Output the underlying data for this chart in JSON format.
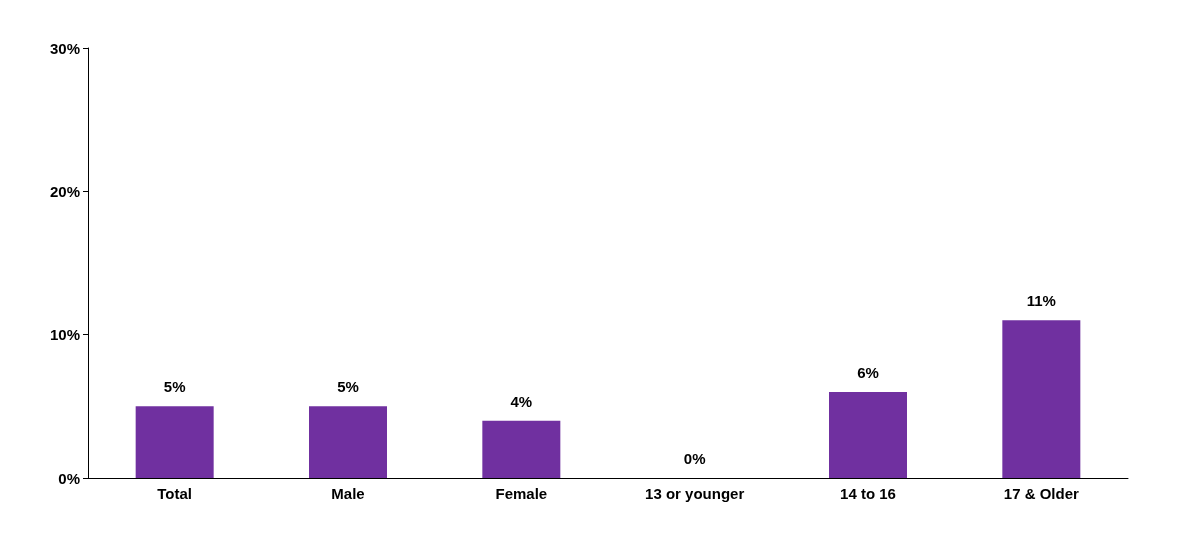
{
  "chart_data": {
    "type": "bar",
    "categories": [
      "Total",
      "Male",
      "Female",
      "13 or younger",
      "14 to 16",
      "17 & Older"
    ],
    "values": [
      5,
      5,
      4,
      0,
      6,
      11
    ],
    "value_labels": [
      "5%",
      "5%",
      "4%",
      "0%",
      "6%",
      "11%"
    ],
    "color": "#7030a0",
    "ylim": [
      0,
      30
    ],
    "yticks": [
      {
        "value": 0,
        "label": "0%"
      },
      {
        "value": 10,
        "label": "10%"
      },
      {
        "value": 20,
        "label": "20%"
      },
      {
        "value": 30,
        "label": "30%"
      }
    ],
    "grid": false
  }
}
